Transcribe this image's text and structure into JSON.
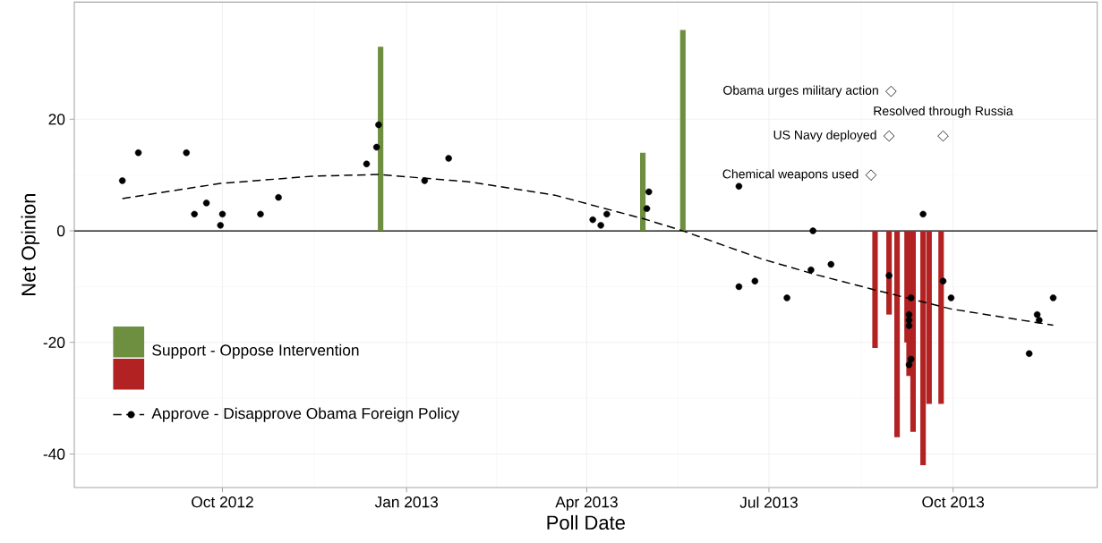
{
  "chart_data": {
    "type": "bar",
    "xlabel": "Poll Date",
    "ylabel": "Net Opinion",
    "xlim": [
      "2012-07-19",
      "2013-12-12"
    ],
    "ylim": [
      -46,
      41
    ],
    "xticks": [
      {
        "value": "2012-10-01",
        "label": "Oct 2012"
      },
      {
        "value": "2013-01-01",
        "label": "Jan 2013"
      },
      {
        "value": "2013-04-01",
        "label": "Apr 2013"
      },
      {
        "value": "2013-07-01",
        "label": "Jul 2013"
      },
      {
        "value": "2013-10-01",
        "label": "Oct 2013"
      }
    ],
    "yticks": [
      -40,
      -20,
      0,
      20
    ],
    "grid": true,
    "legend": "bottom left",
    "ref_lines": [
      {
        "axis": "y",
        "value": 0,
        "color": "#000000"
      }
    ],
    "annotations": [
      {
        "text": "Obama urges military action",
        "x": "2013-08-31",
        "y": 25
      },
      {
        "text": "US Navy deployed",
        "x": "2013-08-30",
        "y": 17
      },
      {
        "text": "Resolved through Russia",
        "x": "2013-09-26",
        "y": 17
      },
      {
        "text": "Chemical weapons used",
        "x": "2013-08-21",
        "y": 10
      }
    ],
    "series": [
      {
        "name": "Support - Oppose Intervention",
        "x": [
          "2012-12-19",
          "2013-04-29",
          "2013-05-19",
          "2013-08-23",
          "2013-08-30",
          "2013-09-03",
          "2013-09-08",
          "2013-09-09",
          "2013-09-11",
          "2013-09-16",
          "2013-09-19",
          "2013-09-25"
        ],
        "values": [
          33,
          14,
          36,
          -21,
          -15,
          -37,
          -20,
          -26,
          -36,
          -42,
          -31,
          -31
        ],
        "colors": [
          "#6e8f40",
          "#6e8f40",
          "#6e8f40",
          "#b22222",
          "#b22222",
          "#b22222",
          "#b22222",
          "#b22222",
          "#b22222",
          "#b22222",
          "#b22222",
          "#b22222"
        ]
      },
      {
        "name": "Approve - Disapprove Obama Foreign Policy",
        "type": "scatter",
        "color": "#000000",
        "marker": "circle",
        "x": [
          "2012-08-12",
          "2012-08-20",
          "2012-09-13",
          "2012-09-17",
          "2012-09-23",
          "2012-09-30",
          "2012-10-01",
          "2012-10-20",
          "2012-10-29",
          "2012-12-12",
          "2012-12-17",
          "2012-12-18",
          "2013-01-10",
          "2013-01-22",
          "2013-04-04",
          "2013-04-08",
          "2013-04-11",
          "2013-05-01",
          "2013-05-02",
          "2013-06-16",
          "2013-06-16",
          "2013-06-24",
          "2013-07-10",
          "2013-07-22",
          "2013-07-23",
          "2013-08-01",
          "2013-08-30",
          "2013-09-09",
          "2013-09-09",
          "2013-09-09",
          "2013-09-09",
          "2013-09-10",
          "2013-09-10",
          "2013-09-16",
          "2013-09-26",
          "2013-09-30",
          "2013-11-08",
          "2013-11-12",
          "2013-11-13",
          "2013-11-20"
        ],
        "values": [
          9,
          14,
          14,
          3,
          5,
          1,
          3,
          3,
          6,
          12,
          15,
          19,
          9,
          13,
          2,
          1,
          3,
          4,
          7,
          8,
          -10,
          -9,
          -12,
          -7,
          0,
          -6,
          -8,
          -15,
          -16,
          -17,
          -24,
          -12,
          -23,
          3,
          -9,
          -12,
          -22,
          -15,
          -16,
          -12
        ]
      },
      {
        "type": "line",
        "color": "#000000",
        "line_style": "dashed",
        "marker": "none",
        "x": [
          "2012-08-12",
          "2012-09-30",
          "2012-11-15",
          "2012-12-18",
          "2013-02-01",
          "2013-03-16",
          "2013-04-30",
          "2013-05-19",
          "2013-06-28",
          "2013-07-25",
          "2013-08-21",
          "2013-09-30",
          "2013-11-20"
        ],
        "values": [
          5.8,
          8.5,
          9.8,
          10.1,
          8.8,
          6.4,
          2.1,
          0,
          -5.1,
          -7.9,
          -10.4,
          -14,
          -16.9
        ]
      }
    ]
  }
}
